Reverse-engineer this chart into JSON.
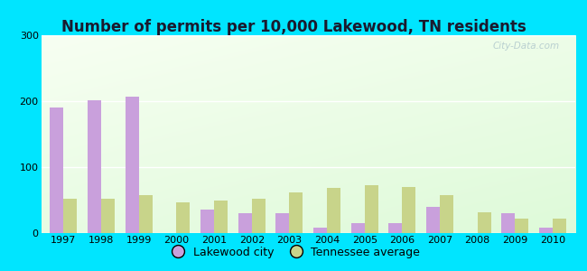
{
  "title": "Number of permits per 10,000 Lakewood, TN residents",
  "years": [
    1997,
    1998,
    1999,
    2000,
    2001,
    2002,
    2003,
    2004,
    2005,
    2006,
    2007,
    2008,
    2009,
    2010
  ],
  "lakewood": [
    190,
    201,
    207,
    0,
    35,
    30,
    30,
    8,
    15,
    15,
    40,
    0,
    30,
    8
  ],
  "tennessee": [
    52,
    52,
    57,
    47,
    50,
    52,
    62,
    68,
    72,
    70,
    57,
    32,
    22,
    22
  ],
  "lakewood_color": "#c9a0dc",
  "tennessee_color": "#c8d48a",
  "ylim": [
    0,
    300
  ],
  "yticks": [
    0,
    100,
    200,
    300
  ],
  "bar_width": 0.36,
  "legend_lakewood": "Lakewood city",
  "legend_tennessee": "Tennessee average",
  "watermark": "City-Data.com",
  "title_fontsize": 12,
  "tick_fontsize": 8,
  "legend_fontsize": 9,
  "outer_bg": "#00e5ff",
  "title_color": "#1a1a2e"
}
